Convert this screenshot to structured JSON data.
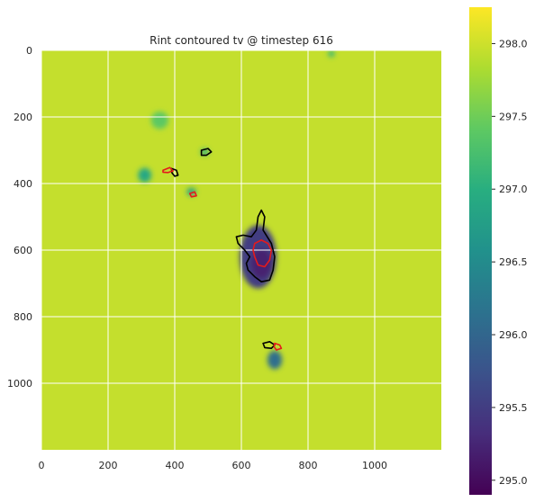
{
  "chart_data": {
    "type": "heatmap",
    "title": "Rint contoured tv @ timestep 616",
    "xlabel": "",
    "ylabel": "",
    "xlim": [
      0,
      1200
    ],
    "ylim": [
      1200,
      0
    ],
    "x_ticks": [
      0,
      200,
      400,
      600,
      800,
      1000
    ],
    "y_ticks": [
      0,
      200,
      400,
      600,
      800,
      1000
    ],
    "grid": true,
    "colormap": "viridis",
    "colorbar": {
      "min": 294.9,
      "max": 298.25,
      "ticks": [
        "295.0",
        "295.5",
        "296.0",
        "296.5",
        "297.0",
        "297.5",
        "298.0"
      ]
    },
    "background_value": 297.95,
    "features": [
      {
        "name": "central-plume",
        "cx": 650,
        "cy": 620,
        "rx": 55,
        "ry": 95,
        "value": 295.5
      },
      {
        "name": "central-core",
        "cx": 660,
        "cy": 640,
        "rx": 30,
        "ry": 45,
        "value": 295.2
      },
      {
        "name": "lower-blob",
        "cx": 700,
        "cy": 930,
        "rx": 22,
        "ry": 28,
        "value": 296.1
      },
      {
        "name": "left-blob",
        "cx": 310,
        "cy": 375,
        "rx": 20,
        "ry": 22,
        "value": 296.9
      },
      {
        "name": "small-blob-a",
        "cx": 450,
        "cy": 425,
        "rx": 14,
        "ry": 12,
        "value": 296.8
      },
      {
        "name": "small-blob-b",
        "cx": 490,
        "cy": 305,
        "rx": 12,
        "ry": 10,
        "value": 297.0
      },
      {
        "name": "upper-left-blob",
        "cx": 355,
        "cy": 210,
        "rx": 26,
        "ry": 26,
        "value": 297.4
      },
      {
        "name": "top-blob",
        "cx": 870,
        "cy": 10,
        "rx": 10,
        "ry": 10,
        "value": 297.1
      }
    ],
    "contours": [
      {
        "color": "#000000",
        "points": [
          [
            660,
            480
          ],
          [
            670,
            500
          ],
          [
            665,
            540
          ],
          [
            690,
            580
          ],
          [
            700,
            620
          ],
          [
            695,
            660
          ],
          [
            685,
            690
          ],
          [
            660,
            695
          ],
          [
            640,
            680
          ],
          [
            620,
            660
          ],
          [
            615,
            640
          ],
          [
            625,
            620
          ],
          [
            610,
            600
          ],
          [
            590,
            580
          ],
          [
            585,
            560
          ],
          [
            605,
            555
          ],
          [
            630,
            560
          ],
          [
            645,
            540
          ],
          [
            650,
            500
          ]
        ]
      },
      {
        "color": "#000000",
        "points": [
          [
            480,
            300
          ],
          [
            500,
            295
          ],
          [
            510,
            305
          ],
          [
            495,
            315
          ],
          [
            480,
            315
          ]
        ]
      },
      {
        "color": "#000000",
        "points": [
          [
            665,
            880
          ],
          [
            685,
            875
          ],
          [
            700,
            885
          ],
          [
            690,
            895
          ],
          [
            670,
            893
          ]
        ]
      },
      {
        "color": "#000000",
        "points": [
          [
            390,
            355
          ],
          [
            405,
            360
          ],
          [
            410,
            375
          ],
          [
            400,
            378
          ],
          [
            392,
            368
          ]
        ]
      },
      {
        "color": "#e41a1c",
        "points": [
          [
            640,
            580
          ],
          [
            660,
            570
          ],
          [
            680,
            580
          ],
          [
            690,
            600
          ],
          [
            685,
            630
          ],
          [
            670,
            650
          ],
          [
            650,
            645
          ],
          [
            640,
            620
          ],
          [
            635,
            600
          ]
        ]
      },
      {
        "color": "#e41a1c",
        "points": [
          [
            365,
            360
          ],
          [
            385,
            352
          ],
          [
            395,
            362
          ],
          [
            380,
            367
          ],
          [
            365,
            366
          ]
        ]
      },
      {
        "color": "#e41a1c",
        "points": [
          [
            445,
            430
          ],
          [
            460,
            425
          ],
          [
            465,
            437
          ],
          [
            450,
            440
          ]
        ]
      },
      {
        "color": "#e41a1c",
        "points": [
          [
            700,
            880
          ],
          [
            715,
            885
          ],
          [
            720,
            895
          ],
          [
            705,
            900
          ],
          [
            698,
            890
          ]
        ]
      }
    ]
  }
}
